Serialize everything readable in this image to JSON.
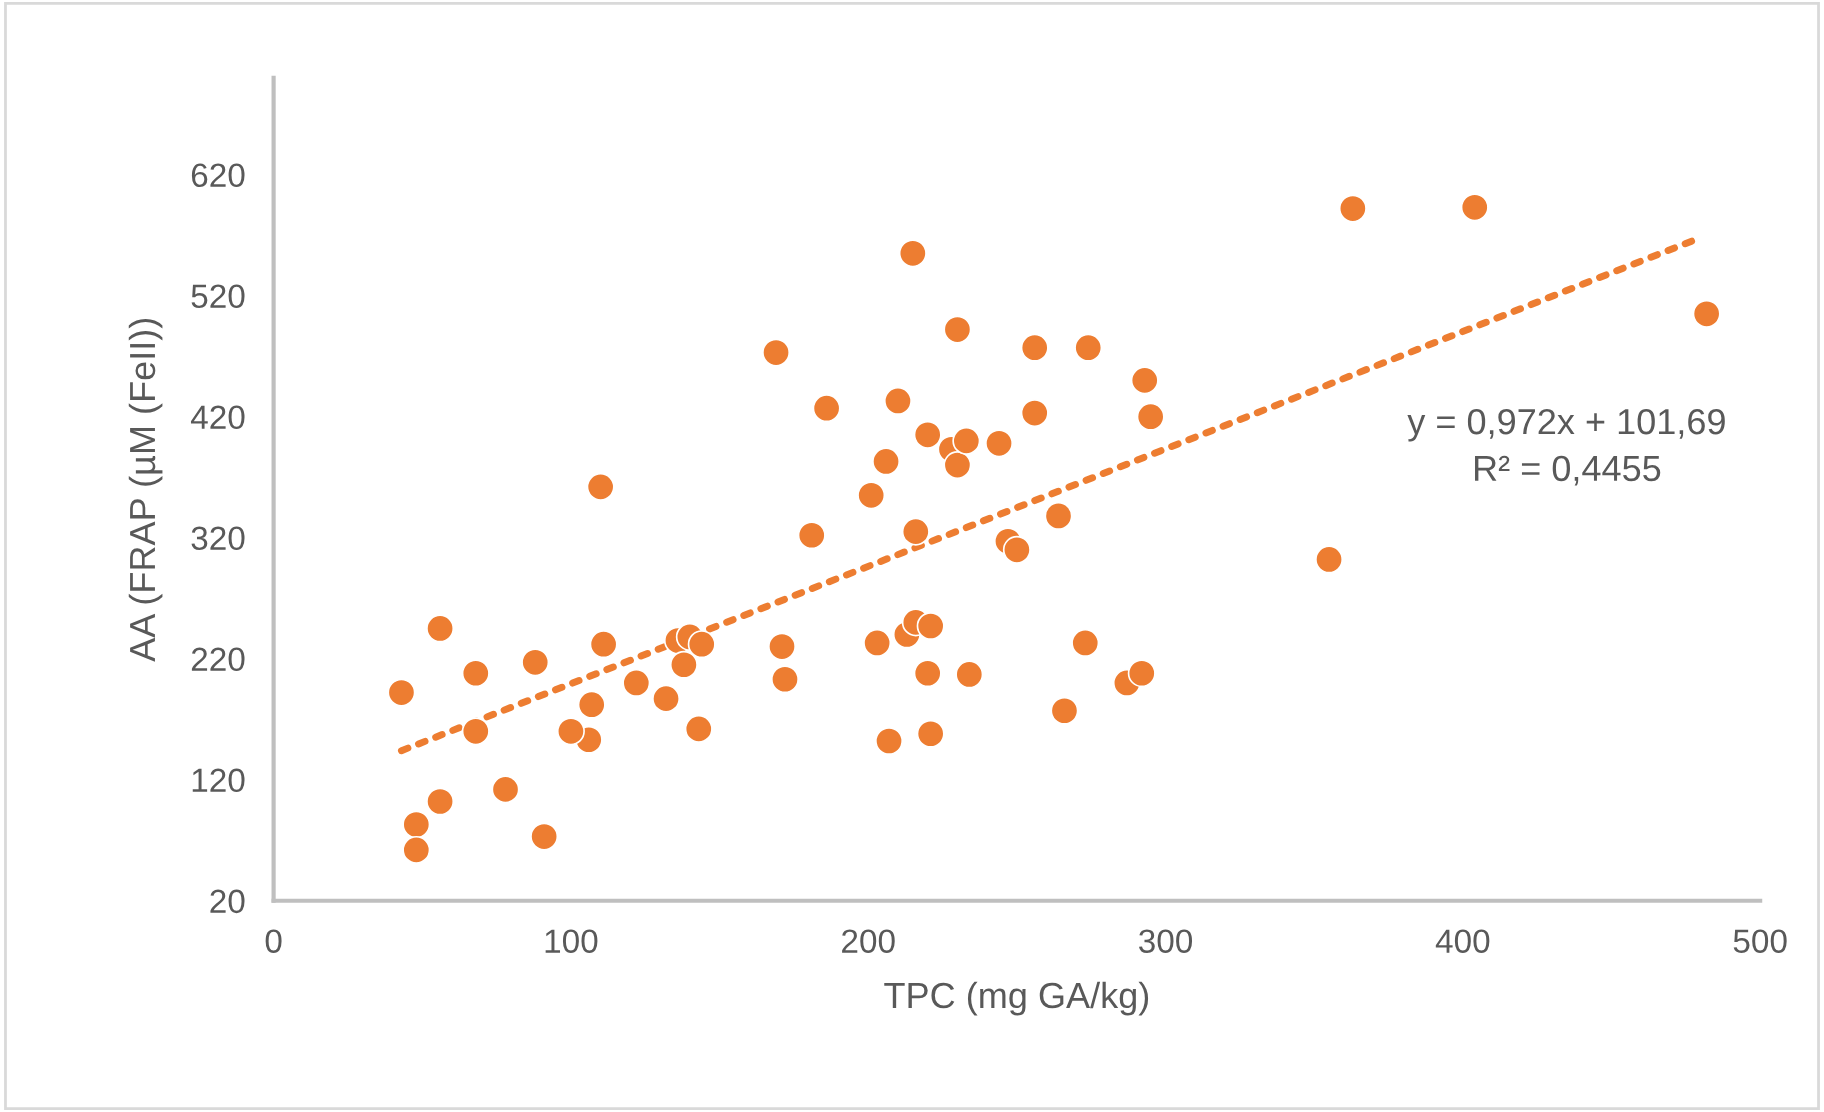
{
  "chart_data": {
    "type": "scatter",
    "xlabel": "TPC (mg GA/kg)",
    "ylabel": "AA (FRAP (µM (FeII))",
    "xlim": [
      0,
      500
    ],
    "xticks": [
      0,
      100,
      200,
      300,
      400,
      500
    ],
    "ylim": [
      20,
      700
    ],
    "yticks": [
      20,
      120,
      220,
      320,
      420,
      520,
      620
    ],
    "grid": false,
    "series": [
      {
        "color": "#ed7d31",
        "marker": "circle",
        "x": [
          43,
          56,
          68,
          68,
          48,
          48,
          56,
          78,
          91,
          88,
          111,
          110,
          107,
          106,
          100,
          122,
          132,
          136,
          138,
          140,
          144,
          143,
          169,
          171,
          172,
          186,
          181,
          201,
          206,
          210,
          215,
          203,
          207,
          213,
          216,
          221,
          220,
          221,
          216,
          220,
          230,
          228,
          230,
          233,
          234,
          244,
          247,
          250,
          256,
          256,
          264,
          274,
          273,
          266,
          287,
          292,
          293,
          295,
          355,
          363,
          404,
          482
        ],
        "values": [
          192,
          245,
          208,
          160,
          83,
          62,
          102,
          112,
          73,
          217,
          232,
          362,
          182,
          153,
          160,
          200,
          187,
          235,
          215,
          238,
          232,
          162,
          473,
          230,
          203,
          427,
          322,
          355,
          383,
          433,
          555,
          233,
          152,
          240,
          250,
          247,
          208,
          158,
          325,
          405,
          492,
          393,
          380,
          400,
          207,
          398,
          317,
          310,
          477,
          423,
          338,
          477,
          233,
          177,
          200,
          208,
          450,
          420,
          302,
          592,
          593,
          505
        ]
      },
      {
        "type": "line",
        "color": "#ed7d31",
        "line_style": "dotted",
        "x": [
          43,
          480
        ],
        "values": [
          144,
          568
        ]
      }
    ],
    "annotations": [
      "y = 0,972x + 101,69\nR² = 0,4455"
    ]
  }
}
